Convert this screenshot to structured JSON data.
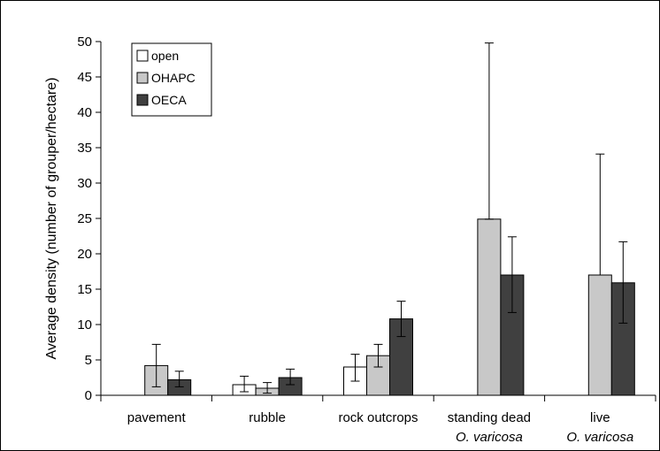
{
  "chart_data": {
    "type": "bar",
    "title": "",
    "xlabel": "",
    "ylabel": "Average density (number of grouper/hectare)",
    "ylim": [
      0,
      50
    ],
    "yticks": [
      0,
      5,
      10,
      15,
      20,
      25,
      30,
      35,
      40,
      45,
      50
    ],
    "grid": false,
    "legend_position": "top-left",
    "categories": [
      {
        "line1": "pavement",
        "line2": ""
      },
      {
        "line1": "rubble",
        "line2": ""
      },
      {
        "line1": "rock outcrops",
        "line2": ""
      },
      {
        "line1": "standing dead",
        "line2": "O. varicosa"
      },
      {
        "line1": "live",
        "line2": "O. varicosa"
      }
    ],
    "series": [
      {
        "name": "open",
        "color": "#ffffff",
        "values": [
          0,
          1.5,
          4.0,
          0,
          0
        ],
        "err_low": [
          0,
          0.5,
          2.0,
          0,
          0
        ],
        "err_high": [
          0,
          2.7,
          5.8,
          0,
          0
        ]
      },
      {
        "name": "OHAPC",
        "color": "#c8c8c8",
        "values": [
          4.2,
          1.0,
          5.6,
          24.9,
          17.0
        ],
        "err_low": [
          1.2,
          0.3,
          4.0,
          24.9,
          17.0
        ],
        "err_high": [
          7.2,
          1.8,
          7.2,
          49.8,
          34.1
        ]
      },
      {
        "name": "OECA",
        "color": "#404040",
        "values": [
          2.2,
          2.5,
          10.8,
          17.0,
          15.9
        ],
        "err_low": [
          1.2,
          1.5,
          8.3,
          11.7,
          10.2
        ],
        "err_high": [
          3.4,
          3.7,
          13.3,
          22.4,
          21.7
        ]
      }
    ]
  }
}
